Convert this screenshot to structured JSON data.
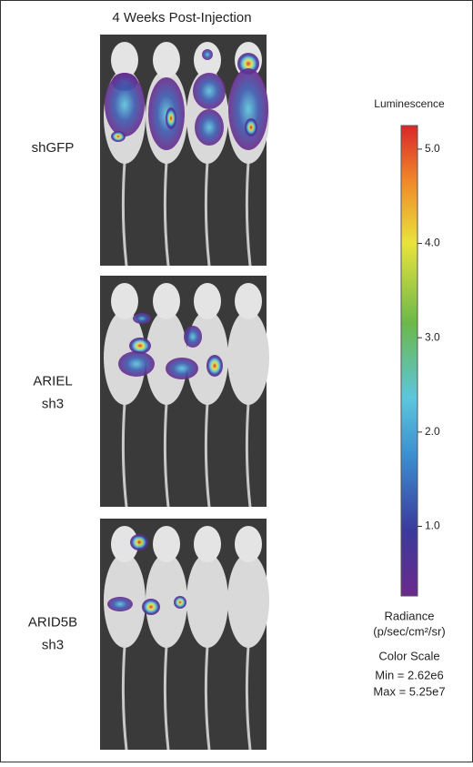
{
  "figure": {
    "title": "4 Weeks Post-Injection",
    "panels": [
      {
        "label_lines": [
          "shGFP"
        ]
      },
      {
        "label_lines": [
          "ARIEL",
          "sh3"
        ]
      },
      {
        "label_lines": [
          "ARID5B",
          "sh3"
        ]
      }
    ]
  },
  "colorbar": {
    "title": "Luminescence",
    "lim": [
      0.262,
      5.25
    ],
    "ticks": [
      {
        "value": 1,
        "label": "1.0"
      },
      {
        "value": 2,
        "label": "2.0"
      },
      {
        "value": 3,
        "label": "3.0"
      },
      {
        "value": 4,
        "label": "4.0"
      },
      {
        "value": 5,
        "label": "5.0"
      }
    ],
    "units_lines": [
      "Radiance",
      "(p/sec/cm²/sr)"
    ],
    "scale_lines": [
      "Color Scale",
      "Min = 2.62e6",
      "Max = 5.25e7"
    ]
  }
}
